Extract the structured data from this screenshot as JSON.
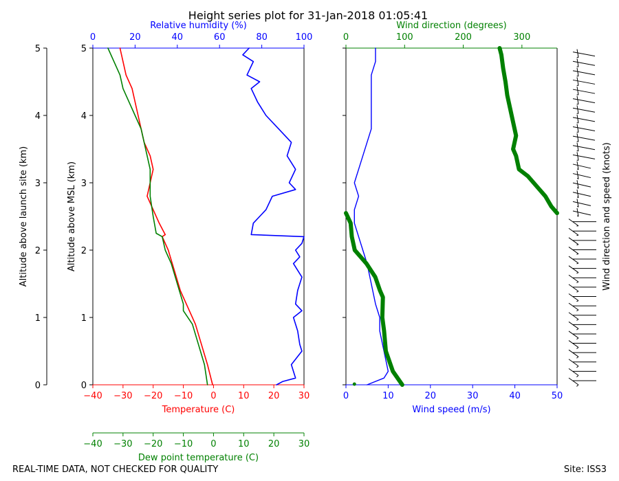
{
  "title": "Height series plot for 31-Jan-2018 01:05:41",
  "footer": {
    "left": "REAL-TIME DATA, NOT CHECKED FOR QUALITY",
    "right": "Site: ISS3"
  },
  "colors": {
    "temperature": "#ff0000",
    "dewpoint": "#008000",
    "humidity": "#0000ff",
    "wind_speed": "#0000ff",
    "wind_direction": "#008000",
    "barbs": "#000000"
  },
  "chart_data": [
    {
      "type": "line",
      "panel": "thermo",
      "ylabel_outer": "Altitude above launch site (km)",
      "ylabel": "Altitude above MSL (km)",
      "ylim": [
        0,
        5
      ],
      "yticks": [
        "0",
        "1",
        "2",
        "3",
        "4",
        "5"
      ],
      "x_axes": {
        "temperature": {
          "label": "Temperature (C)",
          "lim": [
            -40,
            30
          ],
          "ticks": [
            "−40",
            "−30",
            "−20",
            "−10",
            "0",
            "10",
            "20",
            "30"
          ]
        },
        "dewpoint": {
          "label": "Dew point temperature (C)",
          "lim": [
            -40,
            30
          ],
          "ticks": [
            "−40",
            "−30",
            "−20",
            "−10",
            "0",
            "10",
            "20",
            "30"
          ]
        },
        "humidity": {
          "label": "Relative humidity (%)",
          "lim": [
            0,
            100
          ],
          "ticks": [
            "0",
            "20",
            "40",
            "60",
            "80",
            "100"
          ]
        }
      },
      "series": [
        {
          "name": "Temperature",
          "axis": "temperature",
          "points": [
            [
              -0.3,
              0
            ],
            [
              -2,
              0.3
            ],
            [
              -4,
              0.6
            ],
            [
              -6,
              0.9
            ],
            [
              -9,
              1.2
            ],
            [
              -11,
              1.4
            ],
            [
              -13,
              1.7
            ],
            [
              -15,
              2.0
            ],
            [
              -17,
              2.2
            ],
            [
              -16,
              2.23
            ],
            [
              -18,
              2.4
            ],
            [
              -20,
              2.6
            ],
            [
              -22,
              2.8
            ],
            [
              -21,
              3.0
            ],
            [
              -20,
              3.2
            ],
            [
              -21,
              3.4
            ],
            [
              -23,
              3.6
            ],
            [
              -24,
              3.8
            ],
            [
              -25,
              4.0
            ],
            [
              -26,
              4.2
            ],
            [
              -27,
              4.4
            ],
            [
              -29,
              4.6
            ],
            [
              -30,
              4.8
            ],
            [
              -31,
              5.0
            ]
          ]
        },
        {
          "name": "Dew point",
          "axis": "dewpoint",
          "points": [
            [
              -2,
              0
            ],
            [
              -3,
              0.3
            ],
            [
              -5,
              0.6
            ],
            [
              -7,
              0.9
            ],
            [
              -10,
              1.1
            ],
            [
              -10,
              1.2
            ],
            [
              -12,
              1.5
            ],
            [
              -14,
              1.8
            ],
            [
              -16,
              2.0
            ],
            [
              -17,
              2.2
            ],
            [
              -19,
              2.25
            ],
            [
              -20,
              2.5
            ],
            [
              -21,
              2.8
            ],
            [
              -21,
              3.0
            ],
            [
              -21,
              3.2
            ],
            [
              -22,
              3.4
            ],
            [
              -23,
              3.6
            ],
            [
              -24,
              3.8
            ],
            [
              -26,
              4.0
            ],
            [
              -28,
              4.2
            ],
            [
              -30,
              4.4
            ],
            [
              -31,
              4.6
            ],
            [
              -33,
              4.8
            ],
            [
              -35,
              5.0
            ]
          ]
        },
        {
          "name": "Relative humidity",
          "axis": "humidity",
          "points": [
            [
              87,
              0
            ],
            [
              90,
              0.05
            ],
            [
              96,
              0.1
            ],
            [
              94,
              0.3
            ],
            [
              99,
              0.5
            ],
            [
              98,
              0.6
            ],
            [
              97,
              0.8
            ],
            [
              95,
              1.0
            ],
            [
              99,
              1.1
            ],
            [
              96,
              1.2
            ],
            [
              97,
              1.4
            ],
            [
              99,
              1.6
            ],
            [
              95,
              1.8
            ],
            [
              98,
              1.9
            ],
            [
              96,
              2.0
            ],
            [
              99,
              2.1
            ],
            [
              100,
              2.2
            ],
            [
              75,
              2.23
            ],
            [
              76,
              2.4
            ],
            [
              82,
              2.6
            ],
            [
              85,
              2.8
            ],
            [
              96,
              2.9
            ],
            [
              93,
              3.0
            ],
            [
              96,
              3.2
            ],
            [
              92,
              3.4
            ],
            [
              94,
              3.6
            ],
            [
              88,
              3.8
            ],
            [
              82,
              4.0
            ],
            [
              78,
              4.2
            ],
            [
              75,
              4.4
            ],
            [
              79,
              4.5
            ],
            [
              73,
              4.6
            ],
            [
              76,
              4.8
            ],
            [
              71,
              4.9
            ],
            [
              74,
              5.0
            ]
          ]
        }
      ]
    },
    {
      "type": "line",
      "panel": "wind",
      "ylim": [
        0,
        5
      ],
      "x_axes": {
        "wind_speed": {
          "label": "Wind speed (m/s)",
          "lim": [
            0,
            50
          ],
          "ticks": [
            "0",
            "10",
            "20",
            "30",
            "40",
            "50"
          ]
        },
        "wind_direction": {
          "label": "Wind direction (degrees)",
          "lim": [
            0,
            360
          ],
          "ticks": [
            "0",
            "100",
            "200",
            "300"
          ]
        }
      },
      "series": [
        {
          "name": "Wind speed",
          "axis": "wind_speed",
          "points": [
            [
              5,
              0
            ],
            [
              9,
              0.1
            ],
            [
              10,
              0.2
            ],
            [
              9,
              0.5
            ],
            [
              8,
              0.8
            ],
            [
              8,
              1.0
            ],
            [
              7,
              1.2
            ],
            [
              6,
              1.5
            ],
            [
              5,
              1.8
            ],
            [
              4,
              2.0
            ],
            [
              3,
              2.2
            ],
            [
              2,
              2.4
            ],
            [
              2,
              2.6
            ],
            [
              3,
              2.8
            ],
            [
              2,
              3.0
            ],
            [
              3,
              3.2
            ],
            [
              4,
              3.4
            ],
            [
              5,
              3.6
            ],
            [
              6,
              3.8
            ],
            [
              6,
              4.0
            ],
            [
              6,
              4.2
            ],
            [
              6,
              4.4
            ],
            [
              6,
              4.6
            ],
            [
              7,
              4.8
            ],
            [
              7,
              5.0
            ]
          ]
        },
        {
          "name": "Wind direction",
          "axis": "wind_direction",
          "points": [
            [
              96,
              0
            ],
            [
              80,
              0.2
            ],
            [
              68,
              0.5
            ],
            [
              65,
              0.8
            ],
            [
              62,
              1.0
            ],
            [
              63,
              1.3
            ],
            [
              58,
              1.4
            ],
            [
              50,
              1.6
            ],
            [
              35,
              1.8
            ],
            [
              15,
              2.0
            ],
            [
              10,
              2.2
            ],
            [
              8,
              2.4
            ],
            [
              0,
              2.55
            ],
            [
              360,
              2.55
            ],
            [
              350,
              2.65
            ],
            [
              340,
              2.8
            ],
            [
              330,
              2.9
            ],
            [
              310,
              3.1
            ],
            [
              295,
              3.2
            ],
            [
              290,
              3.4
            ],
            [
              285,
              3.5
            ],
            [
              290,
              3.7
            ],
            [
              285,
              3.9
            ],
            [
              280,
              4.1
            ],
            [
              275,
              4.3
            ],
            [
              272,
              4.5
            ],
            [
              268,
              4.7
            ],
            [
              265,
              4.9
            ],
            [
              262,
              5.0
            ]
          ]
        }
      ]
    },
    {
      "type": "barbs",
      "panel": "barbs",
      "label": "Wind direction and speed (knots)",
      "ylim": [
        0,
        5
      ]
    }
  ]
}
